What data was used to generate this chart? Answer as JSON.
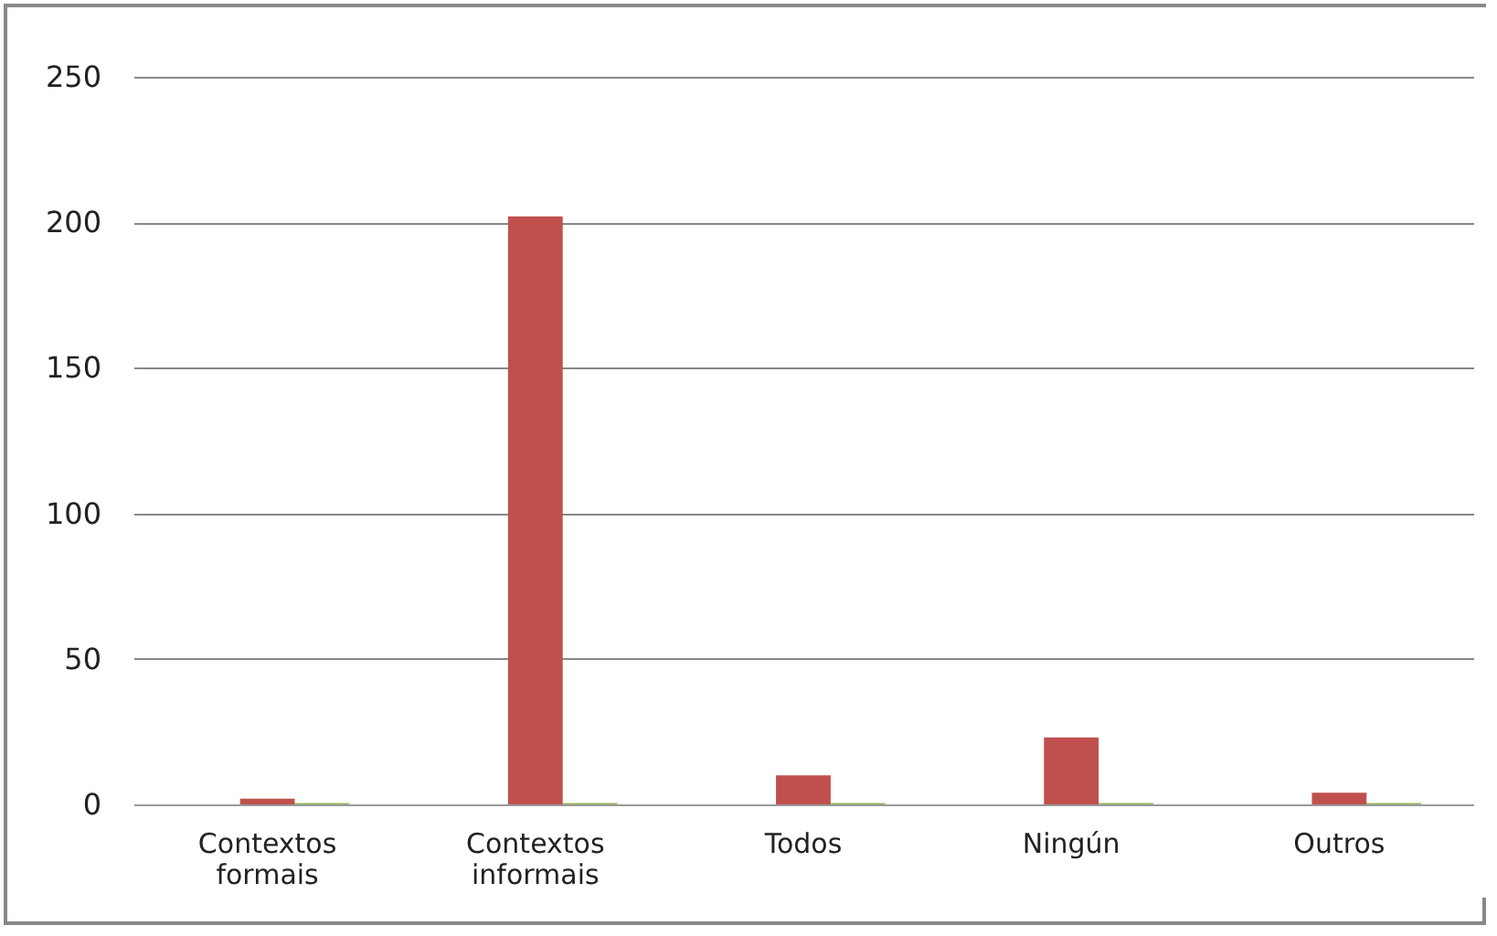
{
  "chart_data": {
    "type": "bar",
    "categories": [
      "Contextos formais",
      "Contextos informais",
      "Todos",
      "Ningún",
      "Outros"
    ],
    "series": [
      {
        "color": "#4f81bd",
        "values": [
          0,
          0,
          0,
          0,
          0
        ]
      },
      {
        "color": "#c0504d",
        "values": [
          2,
          202,
          10,
          23,
          4
        ]
      },
      {
        "color": "#9bbb59",
        "values": [
          0.5,
          0.5,
          0.5,
          0.5,
          0.5
        ]
      }
    ],
    "ylim": [
      0,
      250
    ],
    "yticks": [
      0,
      50,
      100,
      150,
      200,
      250
    ],
    "grid": "y",
    "legend": false
  }
}
